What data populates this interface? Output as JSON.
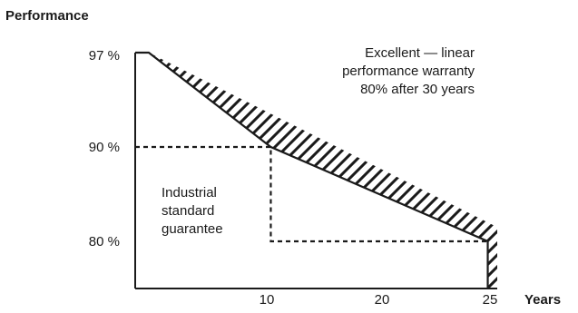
{
  "chart_data": {
    "type": "line",
    "ylabel": "Performance",
    "xlabel": "Years",
    "y_ticks": [
      "97 %",
      "90 %",
      "80 %"
    ],
    "x_ticks": [
      "10",
      "20",
      "25"
    ],
    "annotations": {
      "linear": [
        "Excellent — linear",
        "performance warranty",
        "80% after 30 years"
      ],
      "standard": [
        "Industrial",
        "standard",
        "guarantee"
      ]
    },
    "series": [
      {
        "style": "solid",
        "points": [
          [
            0,
            97
          ],
          [
            1,
            97
          ],
          [
            10,
            90
          ],
          [
            26,
            80
          ],
          [
            26,
            75
          ]
        ]
      },
      {
        "style": "dashed",
        "points": [
          [
            0,
            90
          ],
          [
            10,
            90
          ],
          [
            10,
            80
          ],
          [
            26,
            80
          ]
        ]
      },
      {
        "style": "hatch-top",
        "points": [
          [
            1,
            97
          ],
          [
            26.7,
            81.5
          ],
          [
            26.7,
            75
          ]
        ]
      }
    ]
  }
}
